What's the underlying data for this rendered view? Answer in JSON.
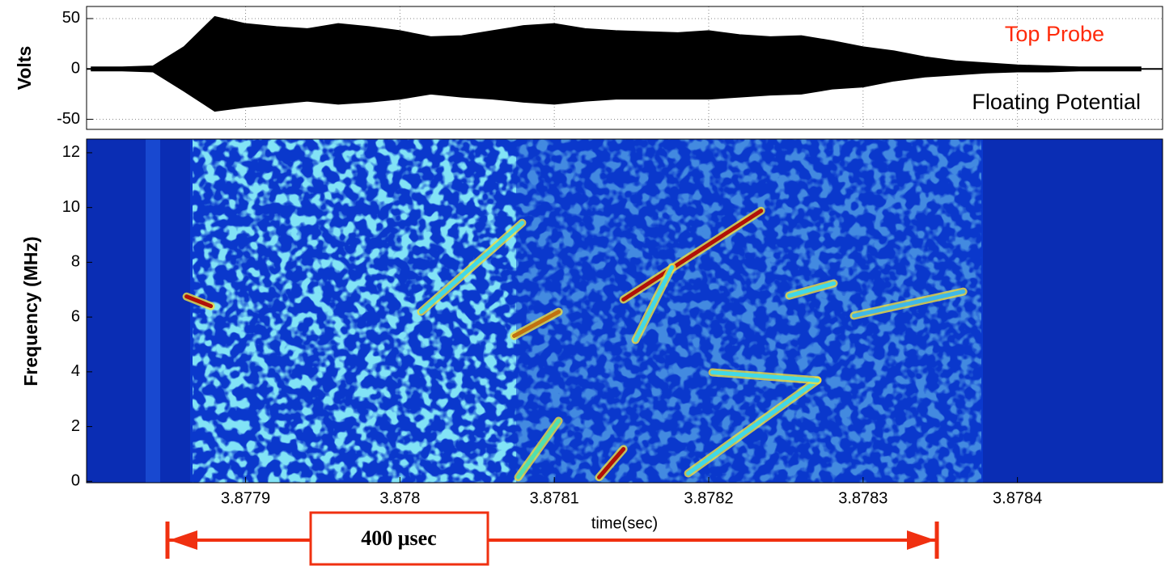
{
  "chart_data": [
    {
      "type": "line",
      "ylabel": "Volts",
      "color": "#000000",
      "grid": true,
      "xlim": [
        3.877797,
        3.878494
      ],
      "ylim": [
        -60,
        62
      ],
      "yticks": [
        -50,
        0,
        50
      ],
      "x": [
        3.8778,
        3.87782,
        3.87784,
        3.87786,
        3.87788,
        3.8779,
        3.87792,
        3.87794,
        3.87796,
        3.87798,
        3.878,
        3.87802,
        3.87804,
        3.87806,
        3.87808,
        3.8781,
        3.87812,
        3.87814,
        3.87816,
        3.87818,
        3.8782,
        3.87822,
        3.87824,
        3.87826,
        3.87828,
        3.8783,
        3.87832,
        3.87834,
        3.87836,
        3.87838,
        3.8784,
        3.87842,
        3.87844,
        3.87846,
        3.87848
      ],
      "upper": [
        2,
        2,
        3,
        22,
        52,
        45,
        42,
        40,
        45,
        42,
        38,
        32,
        33,
        38,
        43,
        45,
        40,
        38,
        37,
        36,
        38,
        34,
        32,
        33,
        28,
        22,
        18,
        12,
        8,
        6,
        4,
        3,
        2,
        2,
        2
      ],
      "lower": [
        -2,
        -2,
        -3,
        -22,
        -42,
        -38,
        -35,
        -32,
        -35,
        -33,
        -30,
        -25,
        -28,
        -30,
        -33,
        -35,
        -32,
        -30,
        -30,
        -30,
        -30,
        -28,
        -26,
        -25,
        -20,
        -18,
        -12,
        -8,
        -6,
        -4,
        -3,
        -3,
        -2,
        -2,
        -2
      ],
      "labels": [
        {
          "text": "Top Probe",
          "color": "#ff2a0a"
        },
        {
          "text": "Floating Potential",
          "color": "#000000"
        }
      ]
    },
    {
      "type": "spectrogram",
      "ylabel": "Frequency (MHz)",
      "xlabel": "time(sec)",
      "xlim": [
        3.877797,
        3.878494
      ],
      "ylim": [
        -0.05,
        12.5
      ],
      "xticks": [
        3.8779,
        3.878,
        3.8781,
        3.8782,
        3.8783,
        3.8784
      ],
      "yticks": [
        0,
        2,
        4,
        6,
        8,
        10,
        12
      ],
      "streaks": [
        {
          "t": [
            3.8781448,
            3.8782339
          ],
          "f": [
            6.64,
            9.88
          ],
          "color": "#b01008"
        },
        {
          "t": [
            3.8780137,
            3.8780792
          ],
          "f": [
            6.19,
            9.44
          ],
          "color": "#40d8e8"
        },
        {
          "t": [
            3.878074,
            3.8781028
          ],
          "f": [
            5.31,
            6.19
          ],
          "color": "#c07010"
        },
        {
          "t": [
            3.8781526,
            3.8781762
          ],
          "f": [
            5.16,
            7.82
          ],
          "color": "#40d8e8"
        },
        {
          "t": [
            3.8781867,
            3.8782705
          ],
          "f": [
            0.29,
            3.69
          ],
          "color": "#40d8e8"
        },
        {
          "t": [
            3.8782024,
            3.8782705
          ],
          "f": [
            3.98,
            3.69
          ],
          "color": "#40d8e8"
        },
        {
          "t": [
            3.8782941,
            3.8783649
          ],
          "f": [
            6.05,
            6.93
          ],
          "color": "#3fb8e8"
        },
        {
          "t": [
            3.8782522,
            3.878281
          ],
          "f": [
            6.78,
            7.23
          ],
          "color": "#40d8e8"
        },
        {
          "t": [
            3.8780766,
            3.8781028
          ],
          "f": [
            0.15,
            2.21
          ],
          "color": "#50e0b0"
        },
        {
          "t": [
            3.878129,
            3.8781448
          ],
          "f": [
            0.15,
            1.18
          ],
          "color": "#b01008"
        },
        {
          "t": [
            3.8778618,
            3.8778775
          ],
          "f": [
            6.75,
            6.4
          ],
          "color": "#b01008"
        }
      ]
    }
  ],
  "annotation": {
    "text": "400 μsec"
  }
}
